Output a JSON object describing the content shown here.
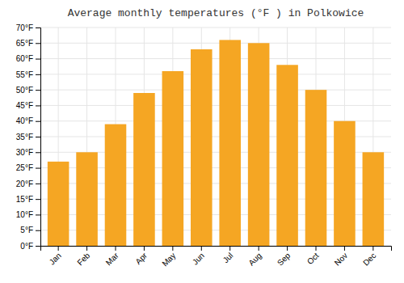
{
  "chart_data": {
    "type": "bar",
    "title": "Average monthly temperatures (°F ) in Polkowice",
    "categories": [
      "Jan",
      "Feb",
      "Mar",
      "Apr",
      "May",
      "Jun",
      "Jul",
      "Aug",
      "Sep",
      "Oct",
      "Nov",
      "Dec"
    ],
    "values": [
      27,
      30,
      39,
      49,
      56,
      63,
      66,
      65,
      58,
      50,
      40,
      30
    ],
    "color": "#F5A623",
    "ylim": [
      0,
      70
    ],
    "yticks": [
      {
        "value": 0,
        "label": "0°F"
      },
      {
        "value": 5,
        "label": "5°F"
      },
      {
        "value": 10,
        "label": "10°F"
      },
      {
        "value": 15,
        "label": "15°F"
      },
      {
        "value": 20,
        "label": "20°F"
      },
      {
        "value": 25,
        "label": "25°F"
      },
      {
        "value": 30,
        "label": "30°F"
      },
      {
        "value": 35,
        "label": "35°F"
      },
      {
        "value": 40,
        "label": "40°F"
      },
      {
        "value": 45,
        "label": "45°F"
      },
      {
        "value": 50,
        "label": "50°F"
      },
      {
        "value": 55,
        "label": "55°F"
      },
      {
        "value": 60,
        "label": "60°F"
      },
      {
        "value": 65,
        "label": "65°F"
      },
      {
        "value": 70,
        "label": "70°F"
      }
    ],
    "grid": true
  }
}
